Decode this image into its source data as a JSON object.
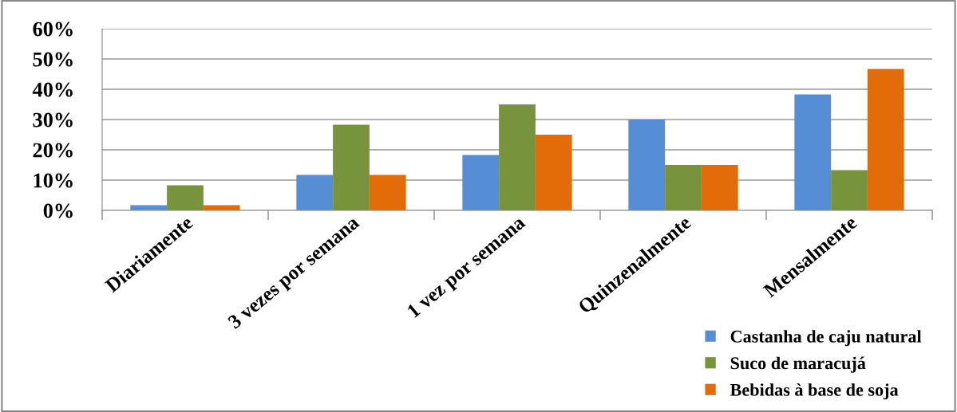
{
  "chart_data": {
    "type": "bar",
    "categories": [
      "Diariamente",
      "3 vezes por semana",
      "1 vez por semana",
      "Quinzenalmente",
      "Mensalmente"
    ],
    "series": [
      {
        "name": "Castanha de caju natural",
        "color": "#558ed5",
        "values": [
          1.7,
          11.7,
          18.3,
          30,
          38.3
        ]
      },
      {
        "name": "Suco de maracujá",
        "color": "#77933c",
        "values": [
          8.3,
          28.3,
          35,
          15,
          13.3
        ]
      },
      {
        "name": "Bebidas à base de soja",
        "color": "#e36c09",
        "values": [
          1.7,
          11.7,
          25,
          15,
          46.7
        ]
      }
    ],
    "ylim": [
      0,
      60
    ],
    "yticks": [
      {
        "value": 0,
        "label": "0%"
      },
      {
        "value": 10,
        "label": "10%"
      },
      {
        "value": 20,
        "label": "20%"
      },
      {
        "value": 30,
        "label": "30%"
      },
      {
        "value": 40,
        "label": "40%"
      },
      {
        "value": 50,
        "label": "50%"
      },
      {
        "value": 60,
        "label": "60%"
      }
    ],
    "grid": "y",
    "legend": "bottom right"
  }
}
